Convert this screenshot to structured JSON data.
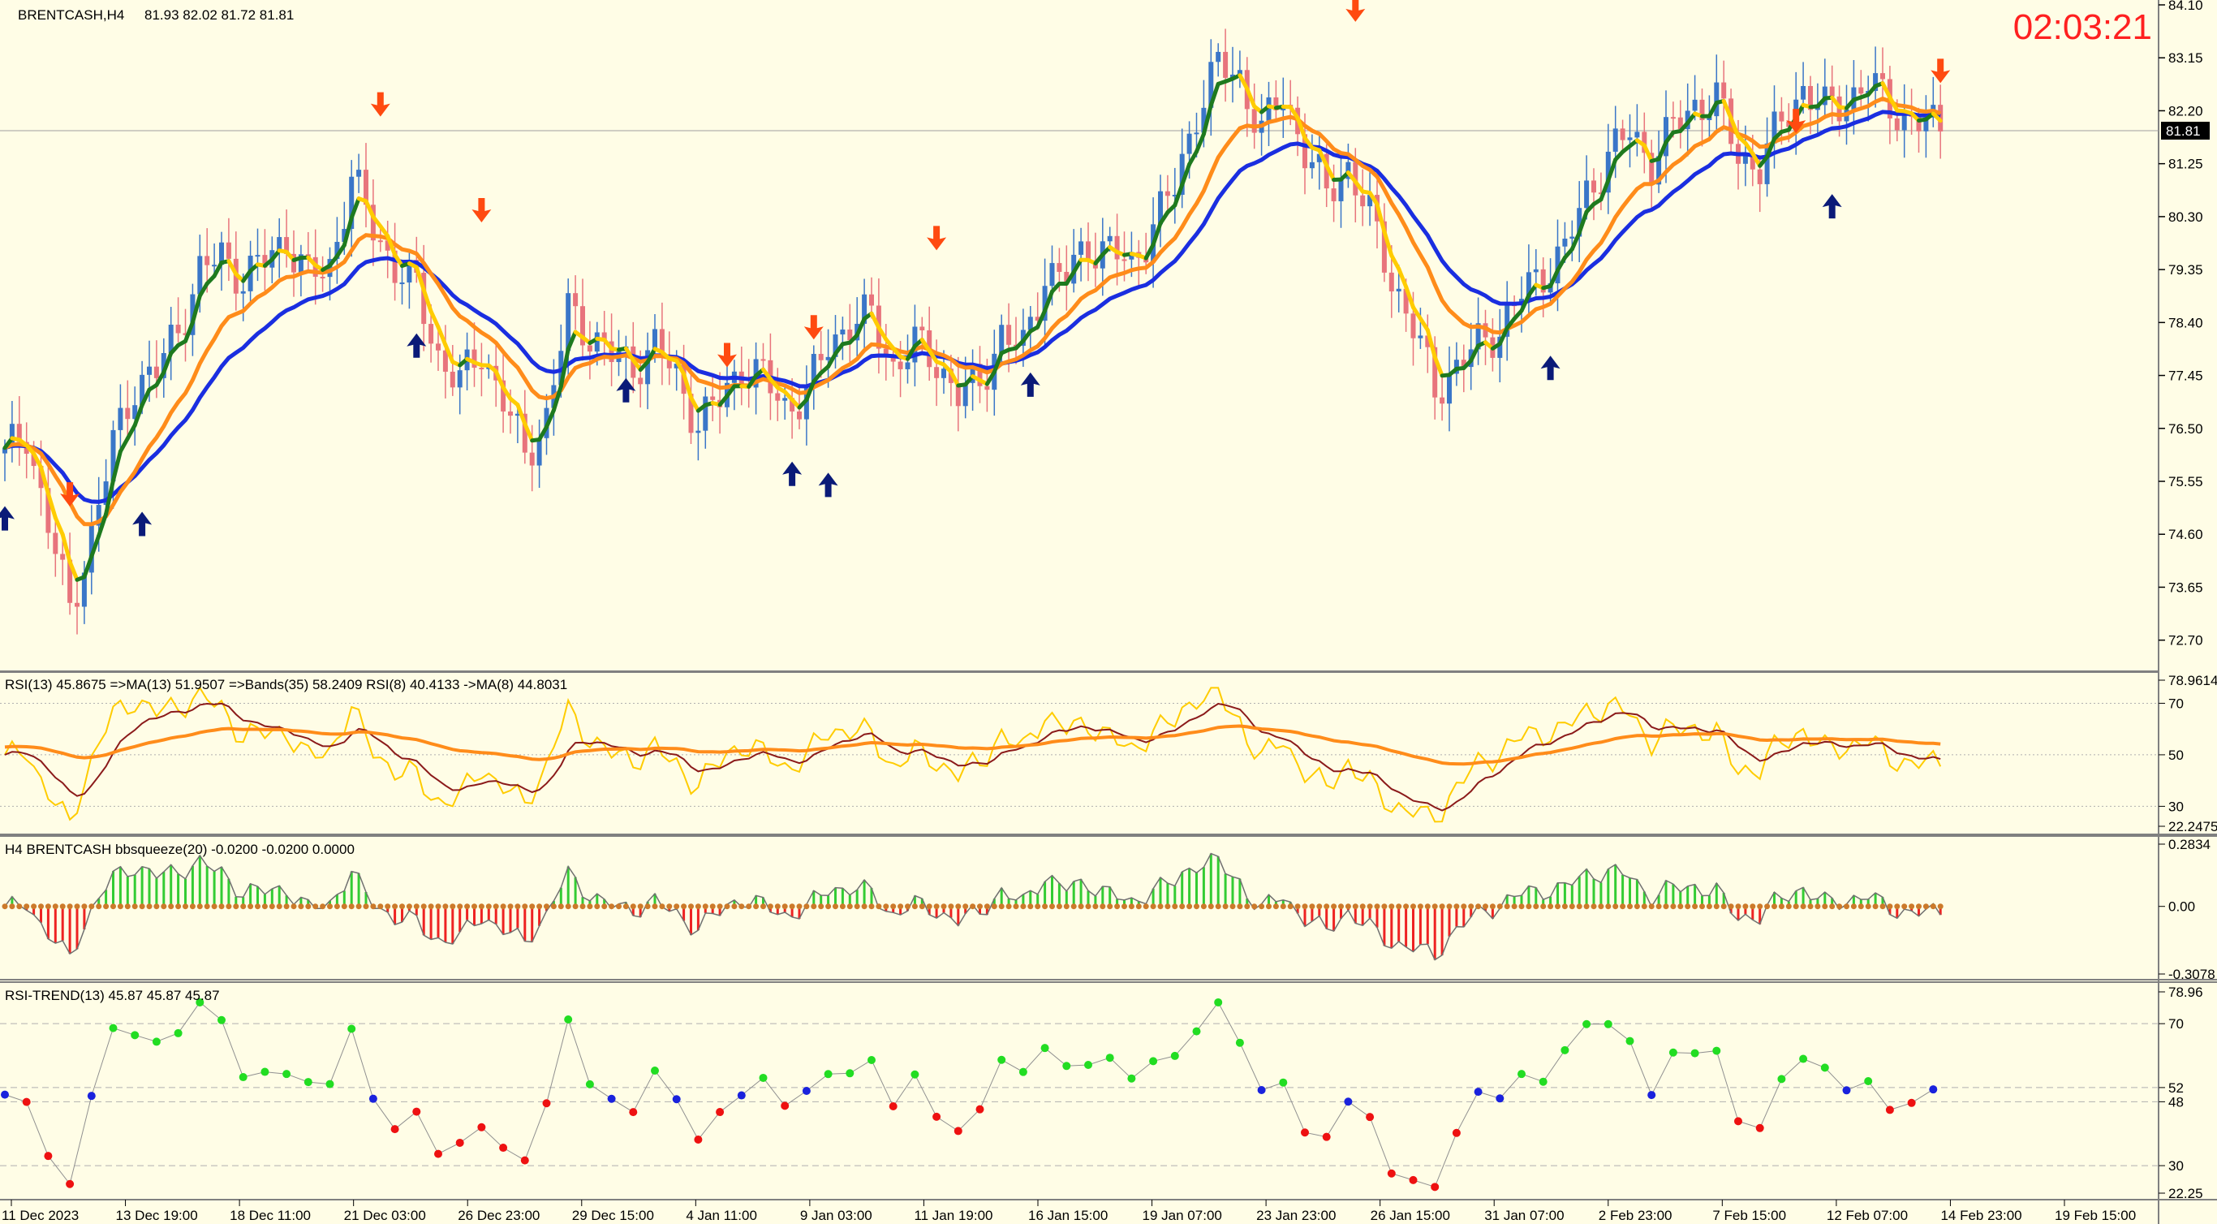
{
  "colors": {
    "background": "#fffde6",
    "bull_candle": "#3a76c8",
    "bear_candle": "#e8747c",
    "ma_fast": "#1e7a1e",
    "ma_fast_alt": "#ffcc00",
    "ma_slow": "#ff8c1a",
    "ma_base": "#1a2ee0",
    "arrow_up": "#0a1a78",
    "arrow_down": "#ff4a10",
    "rsi_main": "#ffcc00",
    "rsi_ma": "#8b1a1a",
    "rsi_bands": "#ff8c1a",
    "squeeze_up": "#33cc33",
    "squeeze_down": "#ee2222",
    "squeeze_dots": "#cc7a2a",
    "trend_up": "#22dd22",
    "trend_down": "#ee1111",
    "trend_flat": "#1a22dd",
    "clock": "#ff2020"
  },
  "header": {
    "symbol": "BRENTCASH,H4",
    "ohlc": "81.93 82.02 81.72 81.81",
    "timer": "02:03:21"
  },
  "current_price": "81.81",
  "chart_data": [
    {
      "type": "candlestick",
      "symbol": "BRENTCASH",
      "timeframe": "H4",
      "ylim": [
        72.2,
        84.1
      ],
      "y_ticks": [
        "84.10",
        "83.15",
        "82.20",
        "81.25",
        "80.30",
        "79.35",
        "78.40",
        "77.45",
        "76.50",
        "75.55",
        "74.60",
        "73.65",
        "72.70"
      ],
      "x_labels": [
        "11 Dec 2023",
        "13 Dec 19:00",
        "18 Dec 11:00",
        "21 Dec 03:00",
        "26 Dec 23:00",
        "29 Dec 15:00",
        "4 Jan 11:00",
        "9 Jan 03:00",
        "11 Jan 19:00",
        "16 Jan 15:00",
        "19 Jan 07:00",
        "23 Jan 23:00",
        "26 Jan 15:00",
        "31 Jan 07:00",
        "2 Feb 23:00",
        "7 Feb 15:00",
        "12 Feb 07:00",
        "14 Feb 23:00",
        "19 Feb 15:00"
      ],
      "price_path": [
        [
          0,
          76.0
        ],
        [
          3,
          76.4
        ],
        [
          6,
          74.8
        ],
        [
          9,
          73.2
        ],
        [
          12,
          74.6
        ],
        [
          15,
          76.2
        ],
        [
          18,
          77.3
        ],
        [
          21,
          77.5
        ],
        [
          24,
          78.3
        ],
        [
          27,
          79.3
        ],
        [
          30,
          79.6
        ],
        [
          33,
          79.2
        ],
        [
          36,
          79.5
        ],
        [
          39,
          79.9
        ],
        [
          42,
          79.2
        ],
        [
          45,
          79.4
        ],
        [
          48,
          81.0
        ],
        [
          51,
          80.1
        ],
        [
          54,
          79.4
        ],
        [
          57,
          79.0
        ],
        [
          60,
          77.8
        ],
        [
          63,
          77.3
        ],
        [
          66,
          77.9
        ],
        [
          69,
          77.0
        ],
        [
          72,
          76.0
        ],
        [
          75,
          76.7
        ],
        [
          78,
          78.6
        ],
        [
          81,
          78.2
        ],
        [
          84,
          77.8
        ],
        [
          87,
          77.6
        ],
        [
          90,
          78.0
        ],
        [
          93,
          77.4
        ],
        [
          96,
          76.6
        ],
        [
          99,
          77.0
        ],
        [
          102,
          77.6
        ],
        [
          105,
          77.4
        ],
        [
          108,
          76.9
        ],
        [
          111,
          77.1
        ],
        [
          114,
          78.0
        ],
        [
          117,
          78.4
        ],
        [
          120,
          78.5
        ],
        [
          123,
          77.6
        ],
        [
          126,
          78.0
        ],
        [
          129,
          77.7
        ],
        [
          132,
          77.1
        ],
        [
          135,
          77.3
        ],
        [
          138,
          78.2
        ],
        [
          141,
          77.9
        ],
        [
          144,
          79.3
        ],
        [
          147,
          79.2
        ],
        [
          150,
          79.8
        ],
        [
          153,
          79.7
        ],
        [
          156,
          79.4
        ],
        [
          159,
          80.2
        ],
        [
          162,
          80.8
        ],
        [
          165,
          82.2
        ],
        [
          168,
          83.0
        ],
        [
          171,
          82.8
        ],
        [
          174,
          81.8
        ],
        [
          177,
          82.5
        ],
        [
          180,
          81.5
        ],
        [
          183,
          80.7
        ],
        [
          186,
          81.2
        ],
        [
          189,
          80.3
        ],
        [
          192,
          79.2
        ],
        [
          195,
          78.3
        ],
        [
          198,
          77.2
        ],
        [
          201,
          77.6
        ],
        [
          204,
          78.0
        ],
        [
          207,
          78.3
        ],
        [
          210,
          78.9
        ],
        [
          213,
          79.3
        ],
        [
          216,
          79.7
        ],
        [
          219,
          80.7
        ],
        [
          222,
          81.4
        ],
        [
          225,
          81.8
        ],
        [
          228,
          81.3
        ],
        [
          231,
          81.9
        ],
        [
          234,
          82.3
        ],
        [
          237,
          82.4
        ],
        [
          240,
          81.4
        ],
        [
          243,
          81.2
        ],
        [
          246,
          82.0
        ],
        [
          249,
          82.6
        ],
        [
          252,
          82.2
        ],
        [
          255,
          82.4
        ],
        [
          258,
          82.7
        ],
        [
          261,
          82.3
        ],
        [
          264,
          82.0
        ],
        [
          268,
          81.9
        ]
      ],
      "arrows": [
        {
          "type": "up",
          "bar": 0,
          "price": 74.9
        },
        {
          "type": "down",
          "bar": 9,
          "price": 75.3
        },
        {
          "type": "up",
          "bar": 19,
          "price": 74.8
        },
        {
          "type": "down",
          "bar": 52,
          "price": 82.3
        },
        {
          "type": "up",
          "bar": 57,
          "price": 78.0
        },
        {
          "type": "down",
          "bar": 66,
          "price": 80.4
        },
        {
          "type": "up",
          "bar": 86,
          "price": 77.2
        },
        {
          "type": "down",
          "bar": 100,
          "price": 77.8
        },
        {
          "type": "up",
          "bar": 109,
          "price": 75.7
        },
        {
          "type": "up",
          "bar": 114,
          "price": 75.5
        },
        {
          "type": "down",
          "bar": 112,
          "price": 78.3
        },
        {
          "type": "down",
          "bar": 129,
          "price": 79.9
        },
        {
          "type": "up",
          "bar": 142,
          "price": 77.3
        },
        {
          "type": "down",
          "bar": 187,
          "price": 84.0
        },
        {
          "type": "up",
          "bar": 214,
          "price": 77.6
        },
        {
          "type": "down",
          "bar": 248,
          "price": 82.0
        },
        {
          "type": "up",
          "bar": 253,
          "price": 80.5
        },
        {
          "type": "down",
          "bar": 268,
          "price": 82.9
        }
      ]
    },
    {
      "type": "line",
      "title": "RSI(13) 45.8675  =>MA(13) 51.9507  =>Bands(35) 58.2409  RSI(8) 40.4133  ->MA(8) 44.8031",
      "ylim": [
        22.2475,
        78.9614
      ],
      "y_ticks": [
        "78.9614",
        "70",
        "50",
        "30",
        "22.2475"
      ],
      "levels": [
        70,
        50,
        30
      ]
    },
    {
      "type": "histogram",
      "title": "H4 BRENTCASH bbsqueeze(20) -0.0200 -0.0200 0.0000",
      "ylim": [
        -0.3078,
        0.2834
      ],
      "y_ticks": [
        "0.2834",
        "0.00",
        "-0.3078"
      ]
    },
    {
      "type": "scatter",
      "title": "RSI-TREND(13) 45.87 45.87 45.87",
      "ylim": [
        22.25,
        78.96
      ],
      "y_ticks": [
        "78.96",
        "70",
        "52",
        "48",
        "30",
        "22.25"
      ],
      "levels": [
        70,
        52,
        48,
        30
      ]
    }
  ]
}
